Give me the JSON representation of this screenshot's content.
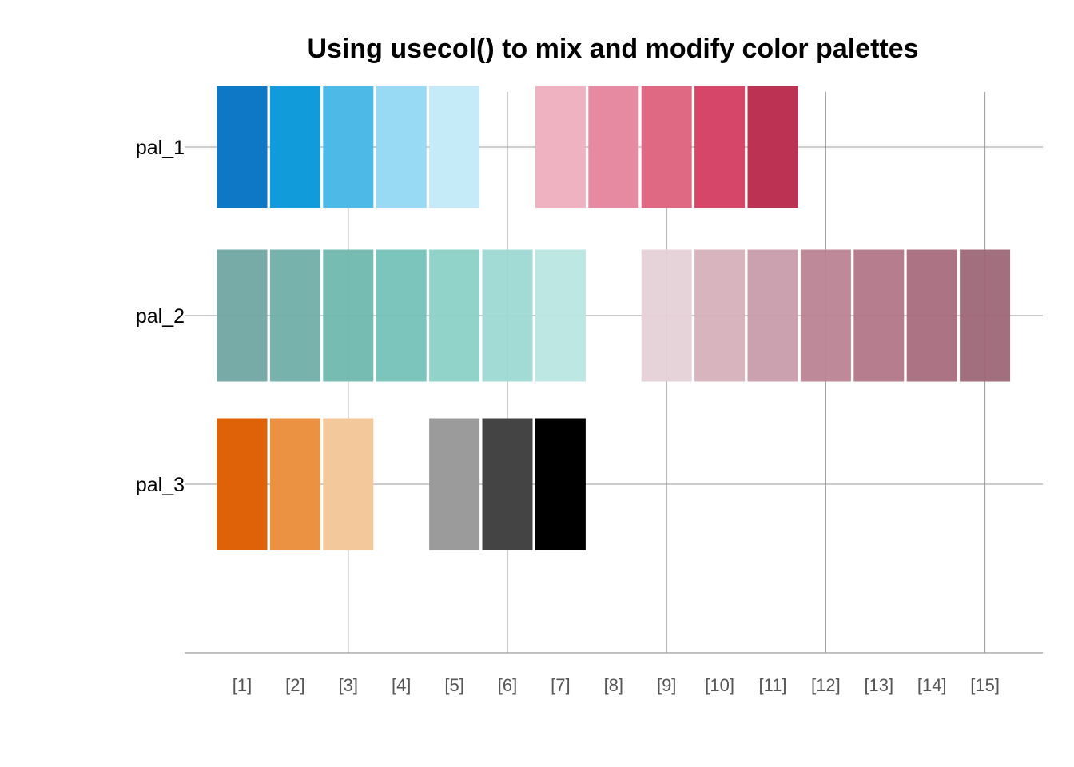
{
  "chart_data": {
    "type": "table",
    "title": "Using usecol() to mix and modify color palettes",
    "x_tick_labels": [
      "[1]",
      "[2]",
      "[3]",
      "[4]",
      "[5]",
      "[6]",
      "[7]",
      "[8]",
      "[9]",
      "[10]",
      "[11]",
      "[12]",
      "[13]",
      "[14]",
      "[15]"
    ],
    "grid_x": [
      3,
      6,
      9,
      12,
      15
    ],
    "palettes": [
      {
        "name": "pal_1",
        "colors": [
          "#0F78C6",
          "#129BDA",
          "#4DB9E7",
          "#98D9F3",
          "#C5EAF8",
          null,
          "#EFB2C0",
          "#E68AA1",
          "#DF6883",
          "#D64669",
          "#BC3253"
        ]
      },
      {
        "name": "pal_2",
        "colors": [
          "#6FA7A2",
          "#70AFA8",
          "#70B8AE",
          "#74C2B8",
          "#8BD1C6",
          "#9DD9D4",
          "#B9E6E2",
          null,
          "#E5D0D7",
          "#D6B0BC",
          "#C99CAB",
          "#BB8393",
          "#B27688",
          "#A66C7C",
          "#9D6778"
        ]
      },
      {
        "name": "pal_3",
        "colors": [
          "#E06208",
          "#EA9242",
          "#F3C99C",
          null,
          "#9B9B9B",
          "#444444",
          "#000000"
        ]
      }
    ]
  }
}
